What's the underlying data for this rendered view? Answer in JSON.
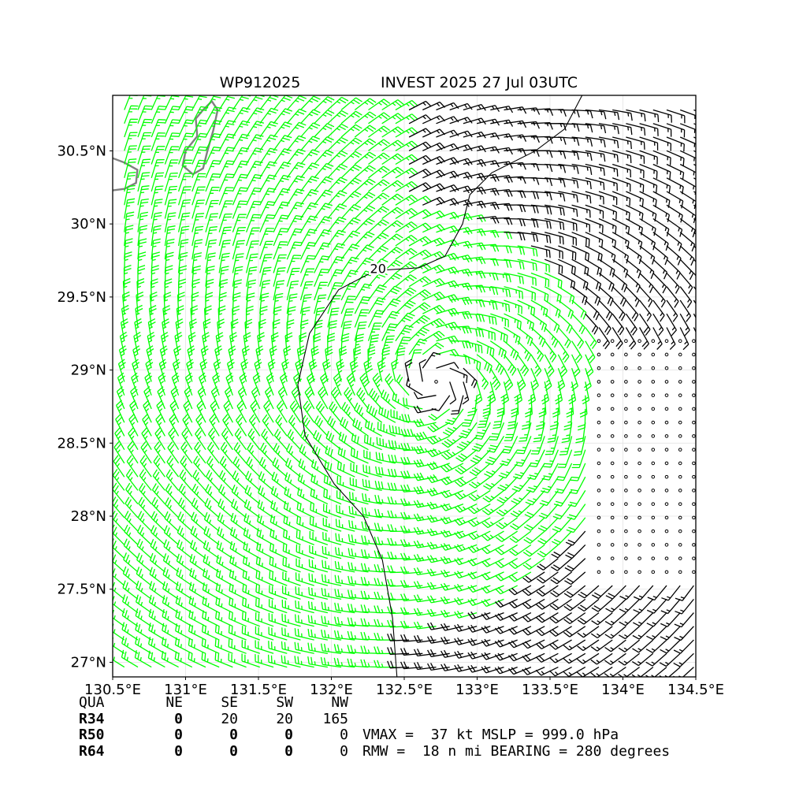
{
  "header": {
    "storm_id": "WP912025",
    "title": "INVEST 2025 27 Jul 03UTC"
  },
  "chart_data": {
    "type": "wind-barb-map",
    "xlim": [
      130.5,
      134.5
    ],
    "ylim": [
      26.9,
      30.88
    ],
    "x_ticks": [
      130.5,
      131,
      131.5,
      132,
      132.5,
      133,
      133.5,
      134,
      134.5
    ],
    "x_tick_labels": [
      "130.5°E",
      "131°E",
      "131.5°E",
      "132°E",
      "132.5°E",
      "133°E",
      "133.5°E",
      "134°E",
      "134.5°E"
    ],
    "y_ticks": [
      27,
      27.5,
      28,
      28.5,
      29,
      29.5,
      30,
      30.5
    ],
    "y_tick_labels": [
      "27°N",
      "27.5°N",
      "28°N",
      "28.5°N",
      "29°N",
      "29.5°N",
      "30°N",
      "30.5°N"
    ],
    "grid": true,
    "contour_label": "20",
    "storm_center": [
      132.7,
      28.9
    ],
    "colors": {
      "barb_low": "#000000",
      "barb_high": "#00ff00",
      "coastline": "#808080",
      "contour": "#000000"
    }
  },
  "radii_table": {
    "headers": [
      "QUA",
      "NE",
      "SE",
      "SW",
      "NW"
    ],
    "rows": [
      {
        "label": "R34",
        "values": [
          "0",
          "20",
          "20",
          "165"
        ]
      },
      {
        "label": "R50",
        "values": [
          "0",
          "0",
          "0",
          "0"
        ]
      },
      {
        "label": "R64",
        "values": [
          "0",
          "0",
          "0",
          "0"
        ]
      }
    ]
  },
  "storm_info": {
    "line1": "VMAX =  37 kt MSLP = 999.0 hPa",
    "line2": "RMW =  18 n mi BEARING = 280 degrees"
  }
}
